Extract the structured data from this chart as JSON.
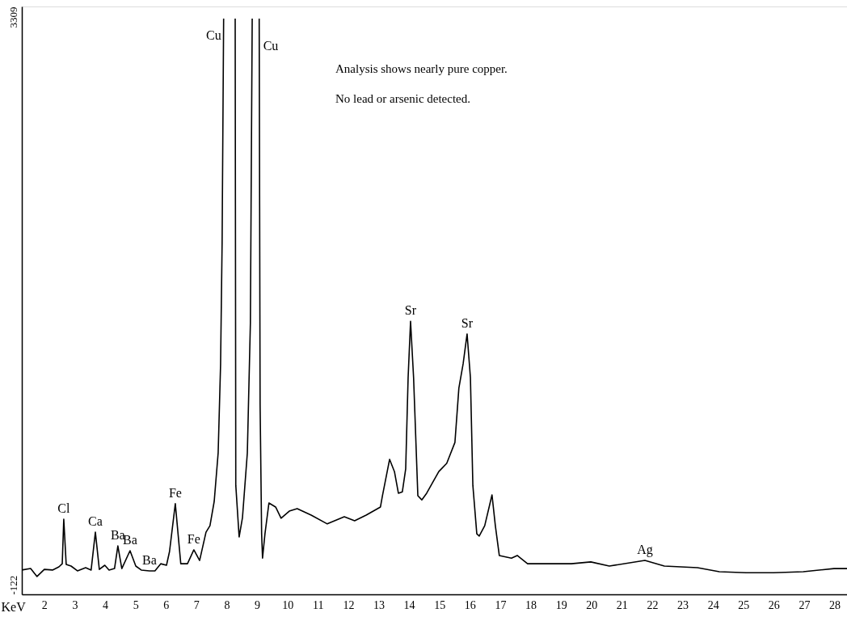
{
  "chart_data": {
    "type": "line",
    "xlabel": "KeV",
    "xlim": [
      1.26,
      28.41
    ],
    "xticks": [
      2,
      3,
      4,
      5,
      6,
      7,
      8,
      9,
      10,
      11,
      12,
      13,
      14,
      15,
      16,
      17,
      18,
      19,
      20,
      21,
      22,
      23,
      24,
      25,
      26,
      27,
      28
    ],
    "ylim": [
      -180,
      3373
    ],
    "yticks": [
      -122,
      3309
    ],
    "grid": false,
    "x": [
      1.26,
      1.55,
      1.76,
      2.0,
      2.27,
      2.48,
      2.59,
      2.64,
      2.72,
      2.88,
      3.09,
      3.36,
      3.54,
      3.68,
      3.81,
      3.99,
      4.13,
      4.31,
      4.42,
      4.55,
      4.82,
      5.01,
      5.19,
      5.46,
      5.64,
      5.83,
      6.02,
      6.12,
      6.31,
      6.49,
      6.71,
      6.92,
      7.11,
      7.32,
      7.45,
      7.59,
      7.72,
      7.8,
      7.85,
      7.9,
      8.09,
      8.28,
      8.3,
      8.41,
      8.52,
      8.68,
      8.78,
      8.84,
      8.96,
      9.07,
      9.1,
      9.15,
      9.18,
      9.26,
      9.39,
      9.61,
      9.79,
      10.06,
      10.32,
      10.78,
      11.31,
      11.87,
      12.21,
      12.59,
      13.06,
      13.12,
      13.36,
      13.52,
      13.65,
      13.78,
      13.89,
      13.97,
      14.05,
      14.15,
      14.29,
      14.42,
      14.58,
      14.77,
      14.98,
      15.24,
      15.51,
      15.64,
      15.78,
      15.91,
      16.02,
      16.1,
      16.23,
      16.31,
      16.49,
      16.73,
      16.84,
      16.97,
      17.37,
      17.56,
      17.9,
      18.44,
      19.34,
      19.98,
      20.59,
      21.76,
      22.4,
      23.49,
      24.21,
      25.09,
      25.99,
      26.97,
      27.98,
      28.41
    ],
    "series": [
      {
        "color": "#000000",
        "values": [
          -33,
          -24,
          -72,
          -29,
          -33,
          -14,
          5,
          274,
          1,
          -9,
          -38,
          -19,
          -33,
          196,
          -29,
          -4,
          -33,
          -24,
          113,
          -24,
          84,
          -9,
          -33,
          -38,
          -38,
          5,
          -4,
          79,
          368,
          5,
          5,
          89,
          25,
          196,
          235,
          382,
          675,
          1213,
          1946,
          3300,
          null,
          3300,
          479,
          167,
          284,
          675,
          1457,
          3300,
          null,
          3300,
          968,
          186,
          39,
          186,
          372,
          348,
          280,
          323,
          338,
          299,
          246,
          289,
          265,
          299,
          348,
          411,
          636,
          562,
          431,
          440,
          578,
          1130,
          1471,
          1130,
          416,
          391,
          431,
          494,
          562,
          612,
          738,
          1067,
          1213,
          1394,
          1130,
          479,
          186,
          172,
          235,
          421,
          235,
          55,
          39,
          55,
          5,
          5,
          5,
          16,
          -9,
          25,
          -9,
          -19,
          -43,
          -49,
          -49,
          -43,
          -24,
          -24
        ]
      }
    ],
    "annotations": [
      {
        "text": "Cl",
        "x": 2.64,
        "y": 274
      },
      {
        "text": "Ca",
        "x": 3.68,
        "y": 196
      },
      {
        "text": "Ba",
        "x": 4.42,
        "y": 113
      },
      {
        "text": "Ba",
        "x": 4.82,
        "y": 84
      },
      {
        "text": "Ba",
        "x": 5.46,
        "y": -38
      },
      {
        "text": "Fe",
        "x": 6.31,
        "y": 368
      },
      {
        "text": "Fe",
        "x": 6.92,
        "y": 89
      },
      {
        "text": "Cu",
        "x": 7.9,
        "y": 3197
      },
      {
        "text": "Cu",
        "x": 9.07,
        "y": 3133
      },
      {
        "text": "Sr",
        "x": 14.05,
        "y": 1471
      },
      {
        "text": "Sr",
        "x": 15.91,
        "y": 1394
      },
      {
        "text": "Ag",
        "x": 21.76,
        "y": 25
      },
      "Analysis shows nearly pure copper.",
      "No lead or arsenic detected."
    ]
  }
}
